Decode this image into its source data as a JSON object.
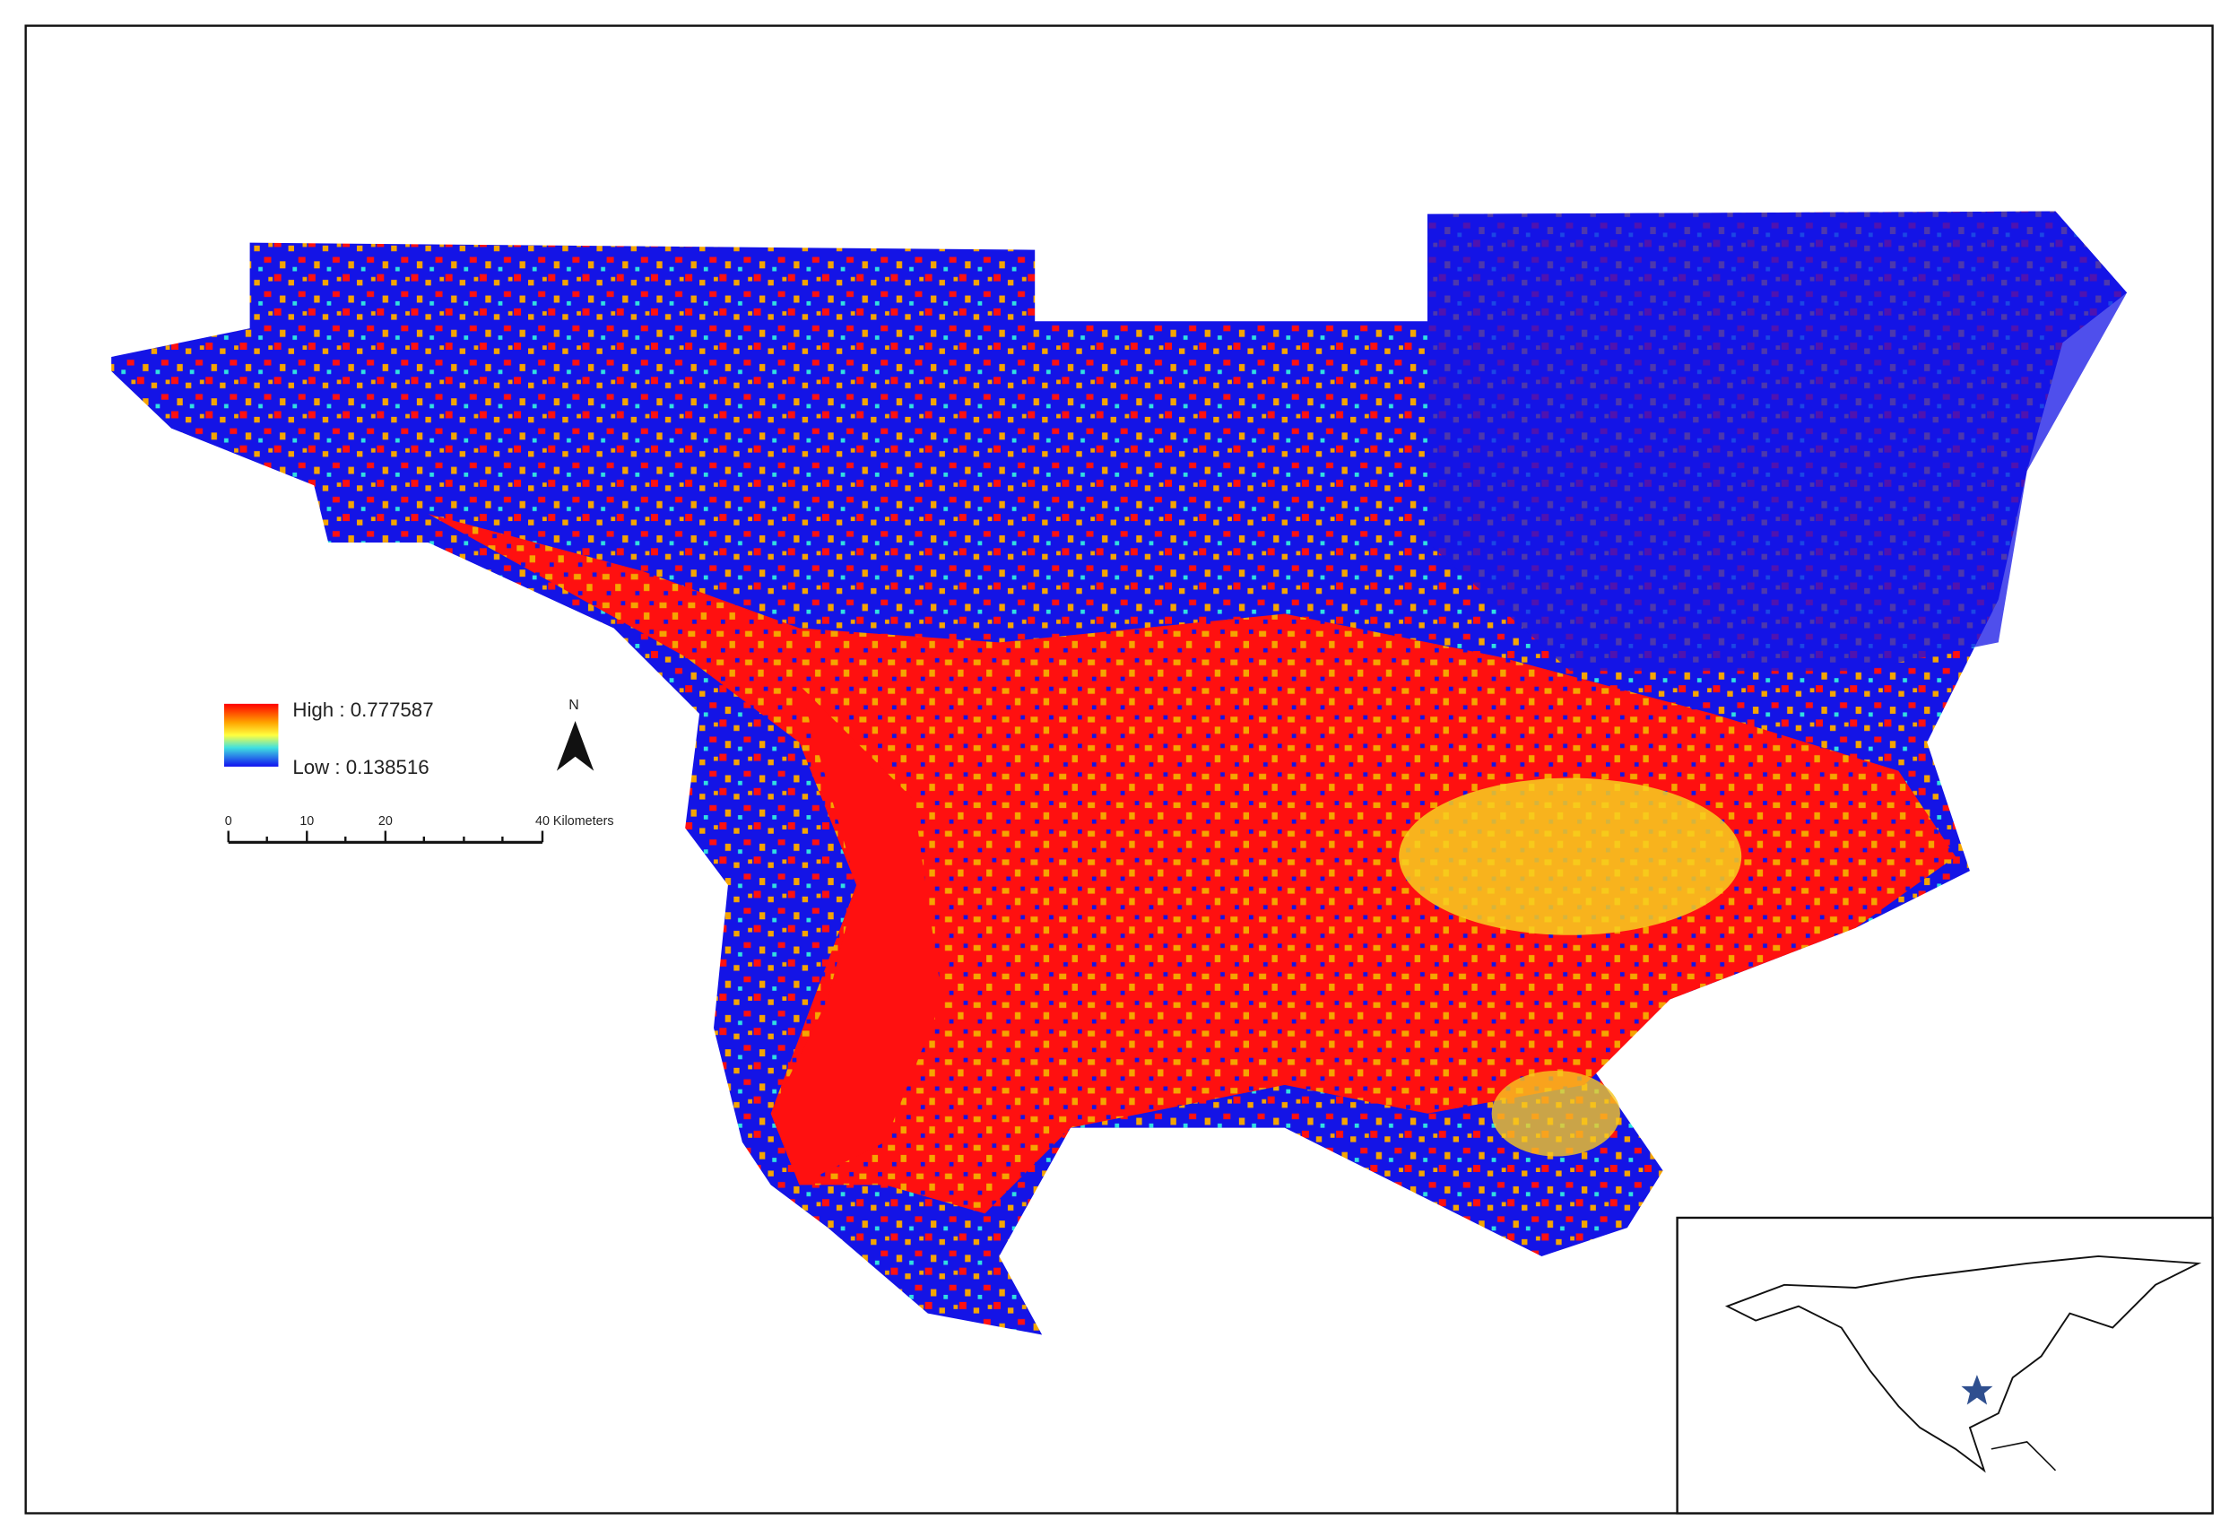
{
  "legend": {
    "high": "High : 0.777587",
    "low": "Low : 0.138516"
  },
  "north_arrow": {
    "label": "N"
  },
  "scale_bar": {
    "labels": [
      "0",
      "10",
      "20",
      "40 Kilometers"
    ]
  }
}
